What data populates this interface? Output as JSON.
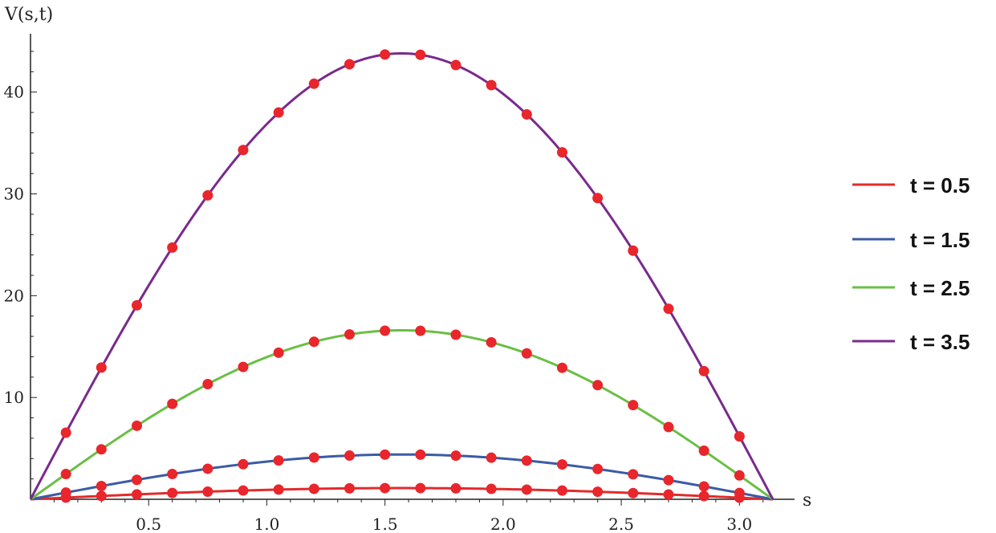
{
  "chart_data": {
    "type": "line",
    "title": "",
    "xlabel": "s",
    "ylabel": "V(s,t)",
    "xlim": [
      0,
      3.1416
    ],
    "ylim": [
      0,
      44.5
    ],
    "x_ticks": [
      "0.5",
      "1.0",
      "1.5",
      "2.0",
      "2.5",
      "3.0"
    ],
    "y_ticks": [
      "10",
      "20",
      "30",
      "40"
    ],
    "grid": false,
    "legend_position": "right",
    "curve": "A(t) * sin(s)",
    "series": [
      {
        "name": "t = 0.5",
        "color": "#e32b2b",
        "amplitude": 1.1
      },
      {
        "name": "t = 1.5",
        "color": "#3b5ba5",
        "amplitude": 4.4
      },
      {
        "name": "t = 2.5",
        "color": "#6abf45",
        "amplitude": 16.6
      },
      {
        "name": "t = 3.5",
        "color": "#7a2a8c",
        "amplitude": 43.8
      }
    ],
    "markers": {
      "color": "#e8262b",
      "x": [
        0.15,
        0.3,
        0.45,
        0.6,
        0.75,
        0.9,
        1.05,
        1.2,
        1.35,
        1.5,
        1.65,
        1.8,
        1.95,
        2.1,
        2.25,
        2.4,
        2.55,
        2.7,
        2.85,
        3.0
      ]
    }
  }
}
